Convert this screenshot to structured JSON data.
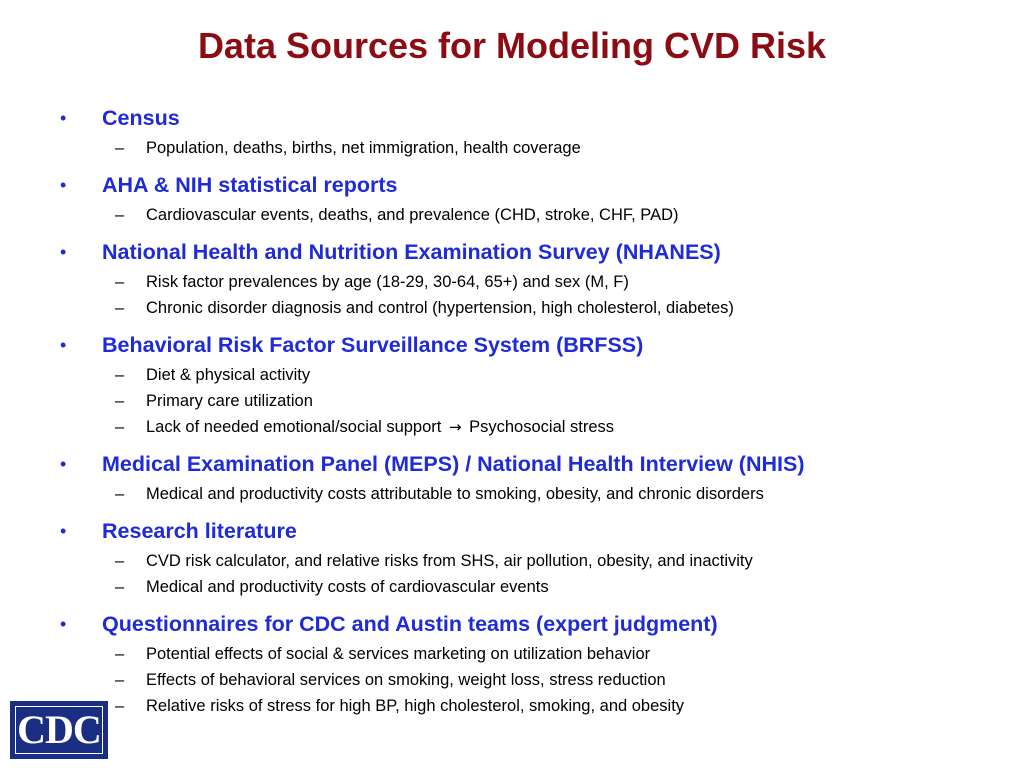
{
  "title": "Data Sources for Modeling CVD Risk",
  "bullet_glyph": "•",
  "dash_glyph": "–",
  "arrow_glyph": "→",
  "sections": [
    {
      "heading": "Census",
      "items": [
        "Population, deaths, births, net immigration, health coverage"
      ]
    },
    {
      "heading": "AHA & NIH statistical reports",
      "items": [
        "Cardiovascular events, deaths, and prevalence (CHD, stroke, CHF, PAD)"
      ]
    },
    {
      "heading": "National Health and Nutrition Examination Survey (NHANES)",
      "items": [
        "Risk factor prevalences by age (18-29, 30-64, 65+) and sex (M, F)",
        "Chronic disorder diagnosis and control (hypertension, high cholesterol, diabetes)"
      ]
    },
    {
      "heading": "Behavioral Risk Factor Surveillance System (BRFSS)",
      "items": [
        "Diet & physical activity",
        "Primary care utilization"
      ],
      "arrow_item": {
        "before": "Lack of needed emotional/social support",
        "after": "Psychosocial stress"
      }
    },
    {
      "heading": "Medical Examination Panel (MEPS) / National Health Interview (NHIS)",
      "items": [
        "Medical and productivity costs attributable to smoking, obesity, and chronic disorders"
      ]
    },
    {
      "heading": "Research literature",
      "items": [
        "CVD risk calculator, and relative risks from SHS, air pollution, obesity, and inactivity",
        "Medical and productivity costs of cardiovascular events"
      ]
    },
    {
      "heading": "Questionnaires for CDC and Austin teams (expert judgment)",
      "items": [
        "Potential effects of social & services marketing on utilization behavior",
        "Effects of behavioral services on smoking, weight loss, stress reduction",
        "Relative risks of stress for high BP, high cholesterol, smoking, and obesity"
      ]
    }
  ],
  "logo": {
    "text": "CDC"
  },
  "colors": {
    "title": "#8b0d13",
    "heading": "#1f2bd6",
    "body": "#000000",
    "logo_bg": "#1a2f84"
  }
}
